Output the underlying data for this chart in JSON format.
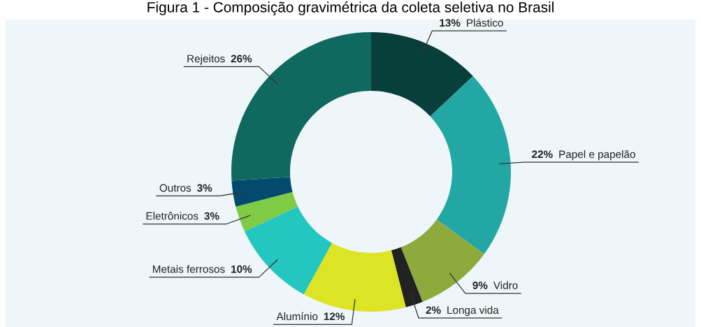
{
  "chart_data": {
    "type": "donut",
    "title": "Figura 1 - Composição gravimétrica da coleta seletiva no Brasil",
    "categories": [
      "Plástico",
      "Papel e papelão",
      "Vidro",
      "Longa vida",
      "Alumínio",
      "Metais ferrosos",
      "Eletrônicos",
      "Outros",
      "Rejeitos"
    ],
    "values": [
      13,
      22,
      9,
      2,
      12,
      10,
      3,
      3,
      26
    ],
    "value_labels": [
      "13%",
      "22%",
      "9%",
      "2%",
      "12%",
      "10%",
      "3%",
      "3%",
      "26%"
    ],
    "colors": [
      "#083f3a",
      "#22a7a5",
      "#8eaa3d",
      "#222222",
      "#dde424",
      "#24c6c0",
      "#7fcb46",
      "#034a6e",
      "#10695f"
    ],
    "legend": false
  }
}
